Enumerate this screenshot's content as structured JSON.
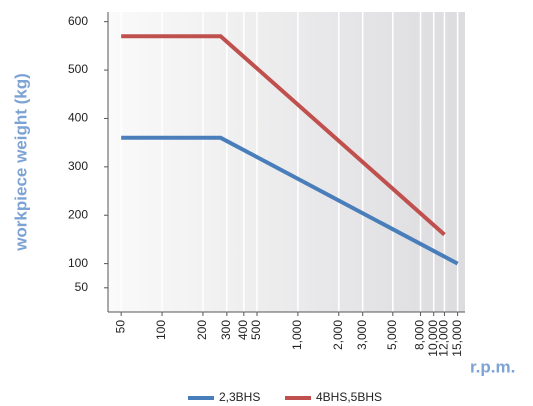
{
  "chart_data": {
    "type": "line",
    "ylabel": "workpiece weight (kg)",
    "xlabel": "r.p.m.",
    "xscale": "log",
    "xlim": [
      40,
      17000
    ],
    "xticks": [
      50,
      100,
      200,
      300,
      400,
      500,
      {
        "value": 1000,
        "label": "1,000"
      },
      {
        "value": 2000,
        "label": "2,000"
      },
      {
        "value": 3000,
        "label": "3,000"
      },
      {
        "value": 5000,
        "label": "5,000"
      },
      {
        "value": 8000,
        "label": "8,000"
      },
      {
        "value": 10000,
        "label": "10,000"
      },
      {
        "value": 12000,
        "label": "12,000"
      },
      {
        "value": 15000,
        "label": "15,000"
      }
    ],
    "ylim": [
      0,
      620
    ],
    "yticks": [
      50,
      100,
      200,
      300,
      400,
      500,
      600
    ],
    "grid": true,
    "legend": "bottom",
    "series": [
      {
        "name": "2,3BHS",
        "color": "#4a7ebb",
        "x": [
          50,
          270,
          15000
        ],
        "values": [
          360,
          360,
          100
        ]
      },
      {
        "name": "4BHS,5BHS",
        "color": "#c0504d",
        "x": [
          50,
          270,
          12000
        ],
        "values": [
          570,
          570,
          160
        ]
      }
    ]
  }
}
